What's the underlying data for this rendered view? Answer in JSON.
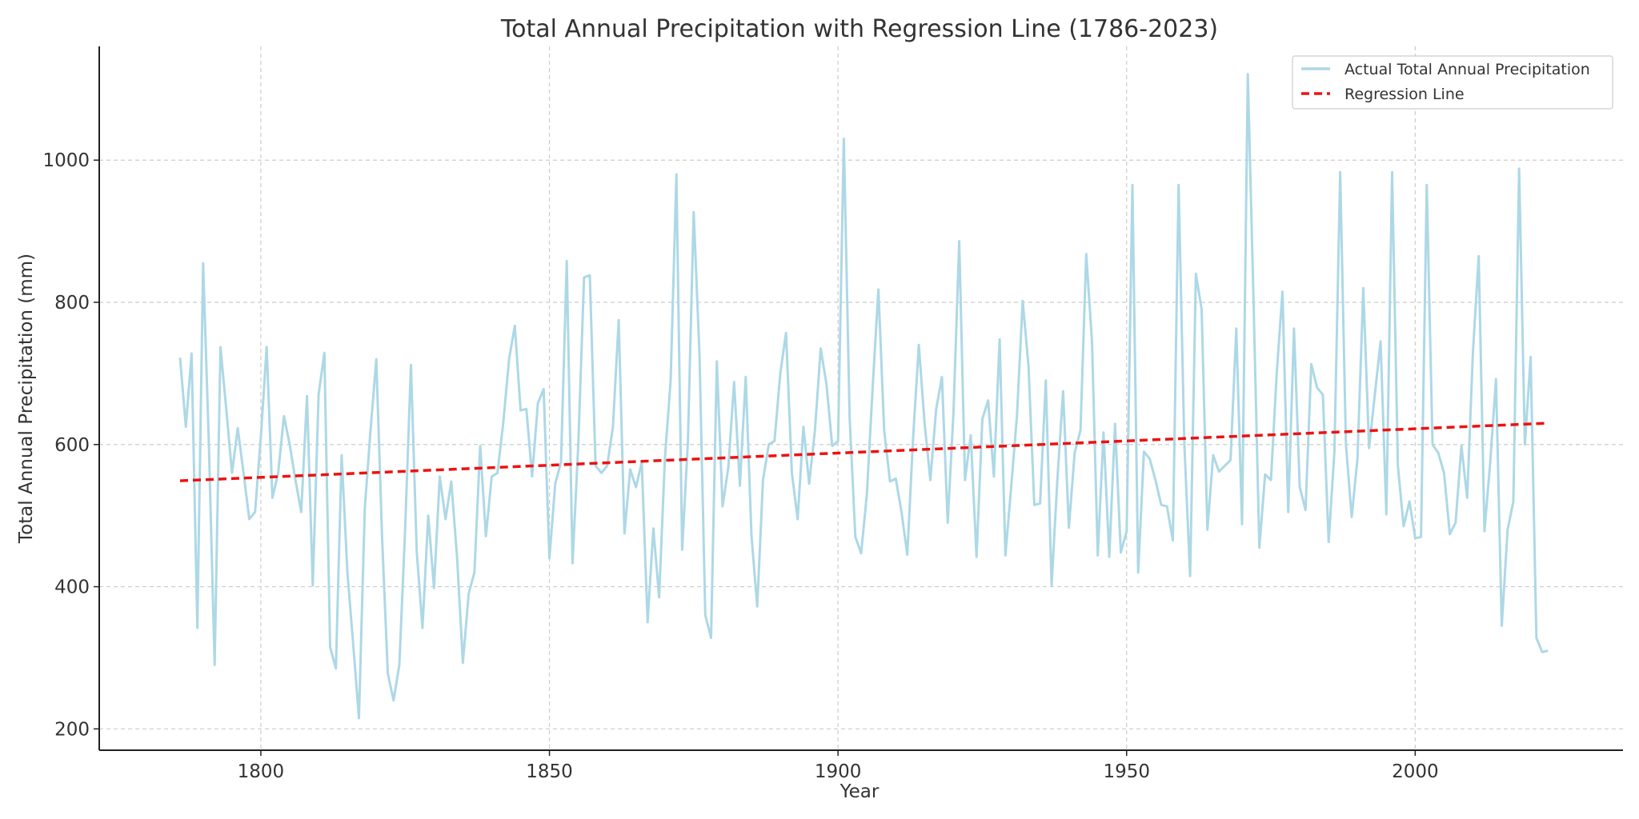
{
  "chart_data": {
    "type": "line",
    "title": "Total Annual Precipitation with Regression Line (1786-2023)",
    "xlabel": "Year",
    "ylabel": "Total Annual Precipitation (mm)",
    "xlim": [
      1772,
      2036
    ],
    "ylim": [
      170,
      1160
    ],
    "xticks": [
      1800,
      1850,
      1900,
      1950,
      2000
    ],
    "yticks": [
      200,
      400,
      600,
      800,
      1000
    ],
    "grid": true,
    "legend_position": "top-right",
    "series": [
      {
        "name": "Actual Total Annual Precipitation",
        "color": "#add8e6",
        "style": "solid",
        "x": [
          1786,
          1787,
          1788,
          1789,
          1790,
          1791,
          1792,
          1793,
          1794,
          1795,
          1796,
          1797,
          1798,
          1799,
          1800,
          1801,
          1802,
          1803,
          1804,
          1805,
          1806,
          1807,
          1808,
          1809,
          1810,
          1811,
          1812,
          1813,
          1814,
          1815,
          1816,
          1817,
          1818,
          1819,
          1820,
          1821,
          1822,
          1823,
          1824,
          1825,
          1826,
          1827,
          1828,
          1829,
          1830,
          1831,
          1832,
          1833,
          1834,
          1835,
          1836,
          1837,
          1838,
          1839,
          1840,
          1841,
          1842,
          1843,
          1844,
          1845,
          1846,
          1847,
          1848,
          1849,
          1850,
          1851,
          1852,
          1853,
          1854,
          1855,
          1856,
          1857,
          1858,
          1859,
          1860,
          1861,
          1862,
          1863,
          1864,
          1865,
          1866,
          1867,
          1868,
          1869,
          1870,
          1871,
          1872,
          1873,
          1874,
          1875,
          1876,
          1877,
          1878,
          1879,
          1880,
          1881,
          1882,
          1883,
          1884,
          1885,
          1886,
          1887,
          1888,
          1889,
          1890,
          1891,
          1892,
          1893,
          1894,
          1895,
          1896,
          1897,
          1898,
          1899,
          1900,
          1901,
          1902,
          1903,
          1904,
          1905,
          1906,
          1907,
          1908,
          1909,
          1910,
          1911,
          1912,
          1913,
          1914,
          1915,
          1916,
          1917,
          1918,
          1919,
          1920,
          1921,
          1922,
          1923,
          1924,
          1925,
          1926,
          1927,
          1928,
          1929,
          1930,
          1931,
          1932,
          1933,
          1934,
          1935,
          1936,
          1937,
          1938,
          1939,
          1940,
          1941,
          1942,
          1943,
          1944,
          1945,
          1946,
          1947,
          1948,
          1949,
          1950,
          1951,
          1952,
          1953,
          1954,
          1955,
          1956,
          1957,
          1958,
          1959,
          1960,
          1961,
          1962,
          1963,
          1964,
          1965,
          1966,
          1967,
          1968,
          1969,
          1970,
          1971,
          1972,
          1973,
          1974,
          1975,
          1976,
          1977,
          1978,
          1979,
          1980,
          1981,
          1982,
          1983,
          1984,
          1985,
          1986,
          1987,
          1988,
          1989,
          1990,
          1991,
          1992,
          1993,
          1994,
          1995,
          1996,
          1997,
          1998,
          1999,
          2000,
          2001,
          2002,
          2003,
          2004,
          2005,
          2006,
          2007,
          2008,
          2009,
          2010,
          2011,
          2012,
          2013,
          2014,
          2015,
          2016,
          2017,
          2018,
          2019,
          2020,
          2021,
          2022,
          2023
        ],
        "values": [
          722,
          625,
          728,
          342,
          855,
          600,
          290,
          737,
          650,
          560,
          623,
          560,
          495,
          505,
          610,
          737,
          525,
          560,
          640,
          600,
          550,
          505,
          668,
          402,
          670,
          729,
          315,
          285,
          585,
          420,
          320,
          215,
          510,
          620,
          720,
          470,
          278,
          240,
          290,
          480,
          712,
          450,
          342,
          500,
          398,
          555,
          495,
          548,
          440,
          293,
          390,
          420,
          598,
          471,
          555,
          560,
          630,
          720,
          767,
          648,
          650,
          555,
          658,
          678,
          440,
          545,
          575,
          858,
          433,
          600,
          835,
          838,
          570,
          560,
          570,
          625,
          775,
          475,
          565,
          540,
          575,
          350,
          482,
          385,
          580,
          690,
          980,
          452,
          605,
          927,
          725,
          360,
          328,
          717,
          513,
          568,
          688,
          542,
          695,
          472,
          372,
          550,
          600,
          605,
          700,
          757,
          560,
          495,
          625,
          545,
          620,
          735,
          685,
          598,
          605,
          1030,
          640,
          470,
          447,
          530,
          680,
          818,
          620,
          548,
          552,
          505,
          445,
          608,
          740,
          630,
          550,
          650,
          695,
          490,
          645,
          886,
          550,
          613,
          442,
          636,
          662,
          555,
          748,
          444,
          540,
          640,
          802,
          710,
          515,
          517,
          690,
          402,
          550,
          675,
          483,
          588,
          620,
          868,
          745,
          444,
          617,
          442,
          629,
          448,
          478,
          965,
          420,
          590,
          580,
          550,
          515,
          513,
          465,
          965,
          600,
          415,
          840,
          790,
          480,
          585,
          562,
          570,
          578,
          763,
          488,
          1121,
          800,
          455,
          558,
          550,
          700,
          815,
          505,
          763,
          540,
          508,
          713,
          680,
          670,
          463,
          590,
          983,
          600,
          498,
          580,
          820,
          595,
          670,
          745,
          502,
          983,
          570,
          485,
          520,
          468,
          470,
          965,
          600,
          588,
          560,
          474,
          490,
          598,
          525,
          730,
          865,
          478,
          575,
          692,
          345,
          480,
          520,
          988,
          600,
          723,
          328,
          308,
          310
        ]
      },
      {
        "name": "Regression Line",
        "color": "#ee1111",
        "style": "dashed",
        "x": [
          1786,
          2023
        ],
        "values": [
          549,
          630
        ]
      }
    ]
  }
}
